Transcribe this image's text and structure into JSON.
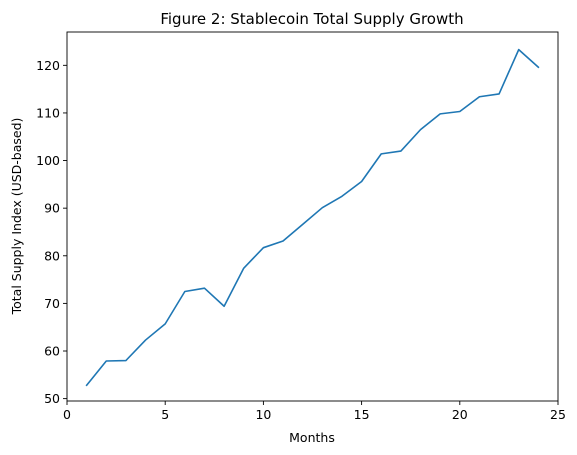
{
  "chart_data": {
    "type": "line",
    "title": "Figure 2: Stablecoin Total Supply Growth",
    "xlabel": "Months",
    "ylabel": "Total Supply Index (USD-based)",
    "xlim": [
      0,
      25
    ],
    "ylim": [
      49.5,
      127
    ],
    "xticks": [
      0,
      5,
      10,
      15,
      20,
      25
    ],
    "yticks": [
      50,
      60,
      70,
      80,
      90,
      100,
      110,
      120
    ],
    "grid": false,
    "legend": "none",
    "series_color": "#1f77b4",
    "series": [
      {
        "x": [
          1,
          2,
          3,
          4,
          5,
          6,
          7,
          8,
          9,
          10,
          11,
          12,
          13,
          14,
          15,
          16,
          17,
          18,
          19,
          20,
          21,
          22,
          23,
          24
        ],
        "values": [
          52.8,
          57.9,
          58.0,
          62.3,
          65.7,
          72.5,
          73.2,
          69.4,
          77.4,
          81.7,
          83.1,
          86.6,
          90.1,
          92.5,
          95.6,
          101.4,
          102.0,
          106.5,
          109.8,
          110.3,
          113.4,
          114.0,
          123.3,
          119.6
        ]
      }
    ]
  }
}
